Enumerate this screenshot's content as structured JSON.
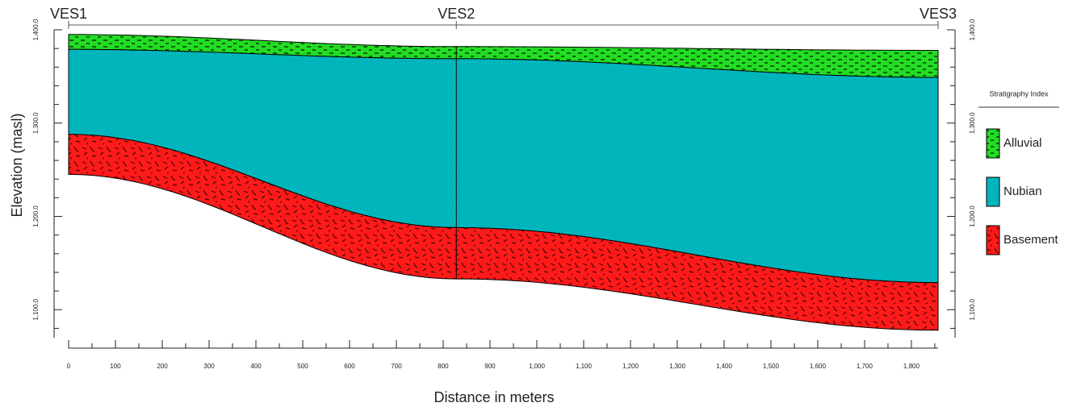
{
  "chart_data": {
    "type": "area",
    "x_label": "Distance in meters",
    "y_label": "Elevation (masl)",
    "legend_title": "Stratigraphy Index",
    "x": [
      0,
      828,
      1857
    ],
    "stations": [
      "VES1",
      "VES2",
      "VES3"
    ],
    "series": [
      {
        "name": "Alluvial",
        "color": "#22dd22",
        "values": [
          1395,
          1382,
          1378
        ],
        "base": [
          1379,
          1369,
          1349
        ]
      },
      {
        "name": "Nubian",
        "color": "#00c0c8",
        "values": [
          1379,
          1369,
          1349
        ],
        "base": [
          1288,
          1188,
          1129
        ]
      },
      {
        "name": "Basement",
        "color": "#ff1a1a",
        "values": [
          1288,
          1188,
          1129
        ],
        "base": [
          1245,
          1133,
          1078
        ]
      }
    ],
    "xlim": [
      0,
      1857
    ],
    "ylim": [
      1070,
      1400
    ],
    "xticks": [
      0,
      100,
      200,
      300,
      400,
      500,
      600,
      700,
      800,
      900,
      {
        "value": 1000,
        "label": "1,000"
      },
      {
        "value": 1100,
        "label": "1,100"
      },
      {
        "value": 1200,
        "label": "1,200"
      },
      {
        "value": 1300,
        "label": "1,300"
      },
      {
        "value": 1400,
        "label": "1,400"
      },
      {
        "value": 1500,
        "label": "1,500"
      },
      {
        "value": 1600,
        "label": "1,600"
      },
      {
        "value": 1700,
        "label": "1,700"
      },
      {
        "value": 1800,
        "label": "1,800"
      }
    ],
    "xticks_minor": [
      50,
      150,
      250,
      350,
      450,
      550,
      650,
      750,
      850,
      950,
      1050,
      1150,
      1250,
      1350,
      1450,
      1550,
      1650,
      1750,
      1850
    ],
    "yticks": [
      {
        "value": 1100,
        "label": "1,100.0"
      },
      {
        "value": 1200,
        "label": "1,200.0"
      },
      {
        "value": 1300,
        "label": "1,300.0"
      },
      {
        "value": 1400,
        "label": "1,400.0"
      }
    ],
    "yticks_minor": [
      1080,
      1120,
      1140,
      1160,
      1180,
      1220,
      1240,
      1260,
      1280,
      1320,
      1340,
      1360,
      1380
    ]
  }
}
